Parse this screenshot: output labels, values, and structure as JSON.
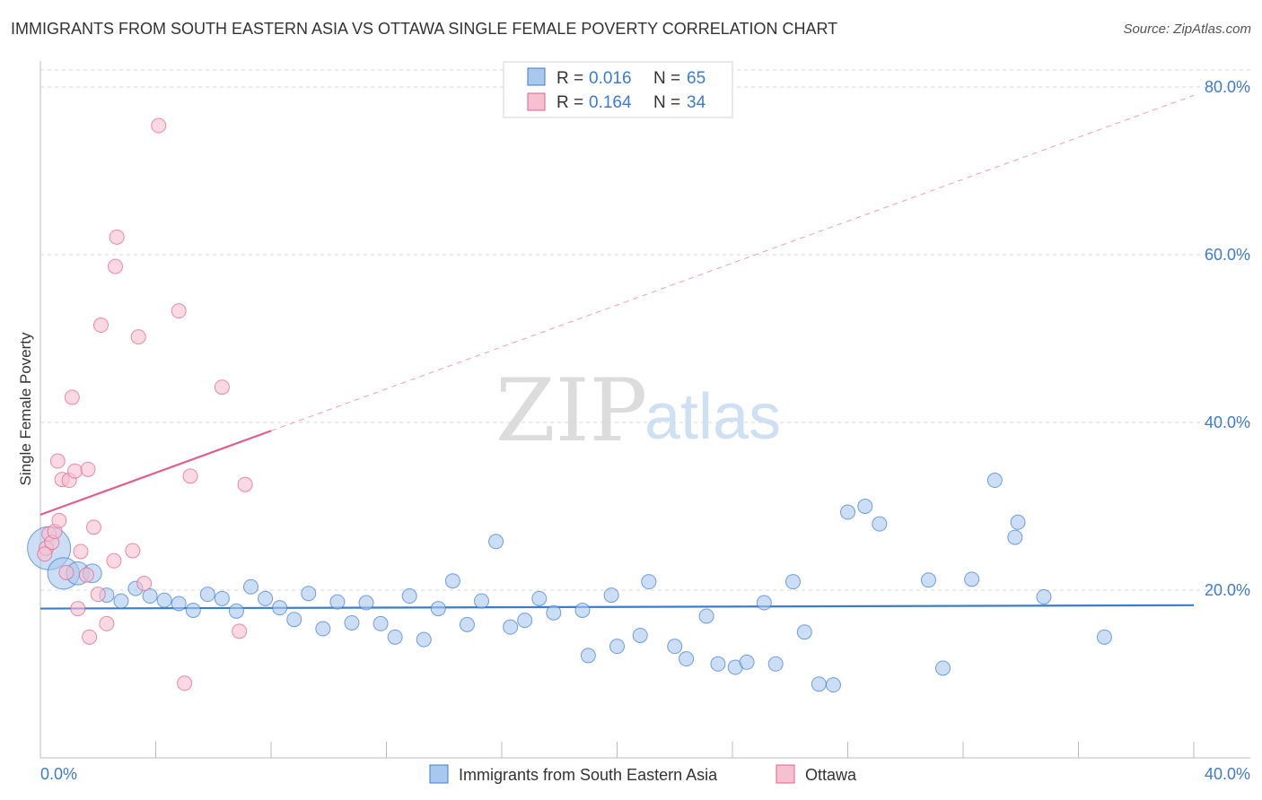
{
  "title": "IMMIGRANTS FROM SOUTH EASTERN ASIA VS OTTAWA SINGLE FEMALE POVERTY CORRELATION CHART",
  "source": "Source: ZipAtlas.com",
  "watermark": {
    "zip": "ZIP",
    "atlas": "atlas"
  },
  "colors": {
    "blue": "#3d7cc9",
    "blue_fill": "#a9c8ee",
    "pink": "#e0608a",
    "pink_fill": "#f6c0d1",
    "grid": "#d8d8d8"
  },
  "legend": {
    "rows": [
      {
        "r_label": "R = ",
        "r_value": "0.016",
        "n_label": "N = ",
        "n_value": "65"
      },
      {
        "r_label": "R = ",
        "r_value": "0.164",
        "n_label": "N = ",
        "n_value": "34"
      }
    ]
  },
  "chart_data": {
    "type": "scatter",
    "title": "IMMIGRANTS FROM SOUTH EASTERN ASIA VS OTTAWA SINGLE FEMALE POVERTY CORRELATION CHART",
    "xlabel": "",
    "ylabel": "Single Female Poverty",
    "xlim": [
      0,
      40
    ],
    "ylim": [
      0,
      82
    ],
    "x_tick_labels": [
      "0.0%",
      "40.0%"
    ],
    "y_tick_values": [
      20,
      40,
      60,
      80
    ],
    "y_tick_labels": [
      "20.0%",
      "40.0%",
      "60.0%",
      "80.0%"
    ],
    "series": [
      {
        "name": "Immigrants from South Eastern Asia",
        "color": "#3d7cc9",
        "trend": {
          "x": [
            0,
            40
          ],
          "y": [
            17.8,
            18.2
          ],
          "style": "solid"
        },
        "points": [
          [
            0.3,
            25.0,
            3
          ],
          [
            0.8,
            22.0,
            2.2
          ],
          [
            1.3,
            22.0,
            1.6
          ],
          [
            1.8,
            22.0,
            1.3
          ],
          [
            2.3,
            19.4,
            1
          ],
          [
            2.8,
            18.7,
            1
          ],
          [
            3.3,
            20.2,
            1
          ],
          [
            3.8,
            19.3,
            1
          ],
          [
            4.3,
            18.8,
            1
          ],
          [
            4.8,
            18.4,
            1
          ],
          [
            5.3,
            17.6,
            1
          ],
          [
            5.8,
            19.5,
            1
          ],
          [
            6.3,
            19.0,
            1
          ],
          [
            6.8,
            17.5,
            1
          ],
          [
            7.3,
            20.4,
            1
          ],
          [
            7.8,
            19.0,
            1
          ],
          [
            8.3,
            17.9,
            1
          ],
          [
            8.8,
            16.5,
            1
          ],
          [
            9.3,
            19.6,
            1
          ],
          [
            9.8,
            15.4,
            1
          ],
          [
            10.3,
            18.6,
            1
          ],
          [
            10.8,
            16.1,
            1
          ],
          [
            11.3,
            18.5,
            1
          ],
          [
            11.8,
            16.0,
            1
          ],
          [
            12.3,
            14.4,
            1
          ],
          [
            12.8,
            19.3,
            1
          ],
          [
            13.3,
            14.1,
            1
          ],
          [
            13.8,
            17.8,
            1
          ],
          [
            14.3,
            21.1,
            1
          ],
          [
            14.8,
            15.9,
            1
          ],
          [
            15.3,
            18.7,
            1
          ],
          [
            15.8,
            25.8,
            1
          ],
          [
            16.3,
            15.6,
            1
          ],
          [
            16.8,
            16.4,
            1
          ],
          [
            17.3,
            19.0,
            1
          ],
          [
            17.8,
            17.3,
            1
          ],
          [
            18.8,
            17.6,
            1
          ],
          [
            19.0,
            12.2,
            1
          ],
          [
            19.8,
            19.4,
            1
          ],
          [
            20.0,
            13.3,
            1
          ],
          [
            20.8,
            14.6,
            1
          ],
          [
            21.1,
            21.0,
            1
          ],
          [
            22.0,
            13.3,
            1
          ],
          [
            22.4,
            11.8,
            1
          ],
          [
            23.1,
            16.9,
            1
          ],
          [
            23.5,
            11.2,
            1
          ],
          [
            24.1,
            10.8,
            1
          ],
          [
            24.5,
            11.4,
            1
          ],
          [
            25.1,
            18.5,
            1
          ],
          [
            25.5,
            11.2,
            1
          ],
          [
            26.1,
            21.0,
            1
          ],
          [
            26.5,
            15.0,
            1
          ],
          [
            27.0,
            8.8,
            1
          ],
          [
            27.5,
            8.7,
            1
          ],
          [
            28.0,
            29.3,
            1
          ],
          [
            28.6,
            30.0,
            1
          ],
          [
            29.1,
            27.9,
            1
          ],
          [
            30.8,
            21.2,
            1
          ],
          [
            31.3,
            10.7,
            1
          ],
          [
            32.3,
            21.3,
            1
          ],
          [
            33.1,
            33.1,
            1
          ],
          [
            33.8,
            26.3,
            1
          ],
          [
            33.9,
            28.1,
            1
          ],
          [
            34.8,
            19.2,
            1
          ],
          [
            36.9,
            14.4,
            1
          ]
        ]
      },
      {
        "name": "Ottawa",
        "color": "#e0608a",
        "trend": {
          "x": [
            0,
            8
          ],
          "y": [
            29.0,
            39.0
          ],
          "style": "solid",
          "extended_x": [
            8,
            40
          ],
          "extended_y": [
            39.0,
            79.0
          ]
        },
        "points": [
          [
            0.2,
            25.0,
            1
          ],
          [
            0.3,
            26.7,
            1
          ],
          [
            0.4,
            25.7,
            1
          ],
          [
            0.5,
            27.0,
            1
          ],
          [
            0.6,
            35.4,
            1
          ],
          [
            0.65,
            28.3,
            1
          ],
          [
            0.75,
            33.2,
            1
          ],
          [
            0.9,
            22.1,
            1
          ],
          [
            1.0,
            33.1,
            1
          ],
          [
            1.1,
            43.0,
            1
          ],
          [
            1.2,
            34.2,
            1
          ],
          [
            1.3,
            17.8,
            1
          ],
          [
            1.4,
            24.6,
            1
          ],
          [
            1.6,
            21.8,
            1
          ],
          [
            1.65,
            34.4,
            1
          ],
          [
            1.7,
            14.4,
            1
          ],
          [
            1.85,
            27.5,
            1
          ],
          [
            2.0,
            19.5,
            1
          ],
          [
            2.1,
            51.6,
            1
          ],
          [
            2.3,
            16.0,
            1
          ],
          [
            2.55,
            23.5,
            1
          ],
          [
            2.6,
            58.6,
            1
          ],
          [
            2.65,
            62.1,
            1
          ],
          [
            3.2,
            24.7,
            1
          ],
          [
            3.4,
            50.2,
            1
          ],
          [
            3.6,
            20.8,
            1
          ],
          [
            4.1,
            75.4,
            1
          ],
          [
            4.8,
            53.3,
            1
          ],
          [
            5.0,
            8.9,
            1
          ],
          [
            5.2,
            33.6,
            1
          ],
          [
            6.3,
            44.2,
            1
          ],
          [
            6.9,
            15.1,
            1
          ],
          [
            7.1,
            32.6,
            1
          ],
          [
            0.15,
            24.3,
            1
          ]
        ]
      }
    ]
  },
  "bottom_legend": {
    "items": [
      "Immigrants from South Eastern Asia",
      "Ottawa"
    ]
  }
}
